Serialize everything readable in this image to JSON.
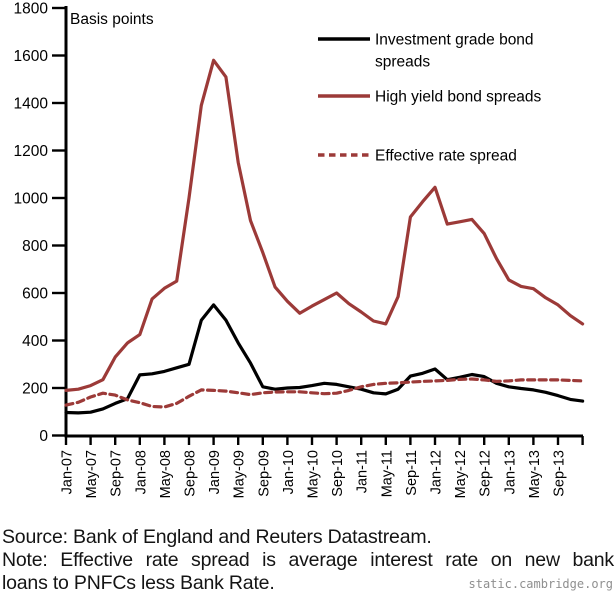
{
  "chart_data": {
    "type": "line",
    "title": "",
    "ylabel": "Basis points",
    "xlabel": "",
    "ylim": [
      0,
      1800
    ],
    "ytick_step": 200,
    "grid": false,
    "legend_position": "top-right-inside",
    "y_tick_labels": [
      "0",
      "200",
      "400",
      "600",
      "800",
      "1000",
      "1200",
      "1400",
      "1600",
      "1800"
    ],
    "x_tick_labels": [
      "Jan-07",
      "May-07",
      "Sep-07",
      "Jan-08",
      "May-08",
      "Sep-08",
      "Jan-09",
      "May-09",
      "Sep-09",
      "Jan-10",
      "May-10",
      "Sep-10",
      "Jan-11",
      "May-11",
      "Sep-11",
      "Jan-12",
      "May-12",
      "Sep-12",
      "Jan-13",
      "May-13",
      "Sep-13"
    ],
    "x_start_label": "Jan-07",
    "months_per_point": 2,
    "series": [
      {
        "id": "investment-grade",
        "name": "Investment grade bond spreads",
        "color": "#000000",
        "style": "solid",
        "values": [
          97,
          95,
          98,
          112,
          135,
          155,
          255,
          260,
          270,
          285,
          300,
          485,
          550,
          486,
          390,
          305,
          205,
          195,
          200,
          202,
          210,
          220,
          215,
          205,
          195,
          180,
          175,
          195,
          250,
          262,
          280,
          235,
          245,
          257,
          248,
          220,
          205,
          198,
          192,
          182,
          168,
          152,
          145
        ]
      },
      {
        "id": "high-yield",
        "name": "High yield bond spreads",
        "color": "#9c3a38",
        "style": "solid",
        "values": [
          190,
          195,
          210,
          235,
          330,
          390,
          425,
          575,
          620,
          650,
          1000,
          1390,
          1580,
          1510,
          1150,
          905,
          770,
          625,
          565,
          515,
          545,
          572,
          600,
          555,
          520,
          482,
          470,
          585,
          920,
          985,
          1045,
          890,
          900,
          910,
          850,
          745,
          655,
          628,
          618,
          580,
          550,
          505,
          470
        ]
      },
      {
        "id": "effective-rate",
        "name": "Effective rate spread",
        "color": "#9c3a38",
        "style": "dashed",
        "values": [
          128,
          140,
          162,
          178,
          170,
          150,
          138,
          122,
          120,
          135,
          165,
          192,
          190,
          187,
          180,
          172,
          180,
          183,
          184,
          184,
          180,
          176,
          178,
          190,
          205,
          215,
          220,
          222,
          225,
          228,
          230,
          232,
          236,
          238,
          234,
          228,
          230,
          234,
          234,
          234,
          234,
          232,
          230
        ]
      }
    ]
  },
  "legend": {
    "items": [
      {
        "lines": [
          "Investment grade bond",
          "spreads"
        ],
        "color": "#000000",
        "dashed": false
      },
      {
        "lines": [
          "High yield bond spreads"
        ],
        "color": "#9c3a38",
        "dashed": false
      },
      {
        "lines": [
          "Effective rate spread"
        ],
        "color": "#9c3a38",
        "dashed": true
      }
    ]
  },
  "footer": {
    "source": "Source: Bank of England and Reuters Datastream.",
    "note_line1": "Note: Effective rate spread is average interest rate on new bank",
    "note_line2": "loans to PNFCs less Bank Rate.",
    "watermark": "static.cambridge.org"
  }
}
